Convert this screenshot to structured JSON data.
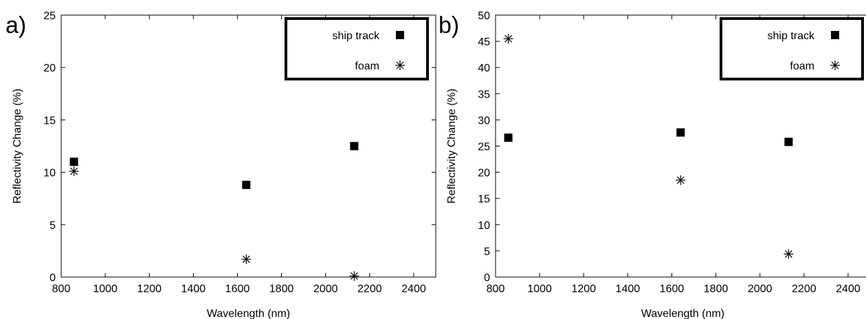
{
  "chart_data": [
    {
      "type": "scatter",
      "panel_label": "a)",
      "xlabel": "Wavelength (nm)",
      "ylabel": "Reflectivity Change (%)",
      "xlim": [
        800,
        2500
      ],
      "ylim": [
        0,
        25
      ],
      "xticks": [
        800,
        1000,
        1200,
        1400,
        1600,
        1800,
        2000,
        2200,
        2400
      ],
      "yticks": [
        0,
        5,
        10,
        15,
        20,
        25
      ],
      "legend_position": "top-right",
      "grid": false,
      "series": [
        {
          "name": "ship track",
          "marker": "square",
          "color": "#000000",
          "x": [
            858,
            1640,
            2130
          ],
          "y": [
            11.0,
            8.8,
            12.5
          ]
        },
        {
          "name": "foam",
          "marker": "asterisk",
          "color": "#000000",
          "x": [
            858,
            1640,
            2130
          ],
          "y": [
            10.1,
            1.7,
            0.1
          ]
        }
      ]
    },
    {
      "type": "scatter",
      "panel_label": "b)",
      "xlabel": "Wavelength (nm)",
      "ylabel": "Reflectivity Change (%)",
      "xlim": [
        800,
        2500
      ],
      "ylim": [
        0,
        50
      ],
      "xticks": [
        800,
        1000,
        1200,
        1400,
        1600,
        1800,
        2000,
        2200,
        2400
      ],
      "yticks": [
        0,
        5,
        10,
        15,
        20,
        25,
        30,
        35,
        40,
        45,
        50
      ],
      "legend_position": "top-right",
      "grid": false,
      "series": [
        {
          "name": "ship track",
          "marker": "square",
          "color": "#000000",
          "x": [
            858,
            1640,
            2130
          ],
          "y": [
            26.6,
            27.6,
            25.8
          ]
        },
        {
          "name": "foam",
          "marker": "asterisk",
          "color": "#000000",
          "x": [
            858,
            1640,
            2130
          ],
          "y": [
            45.5,
            18.5,
            4.4
          ]
        }
      ]
    }
  ]
}
